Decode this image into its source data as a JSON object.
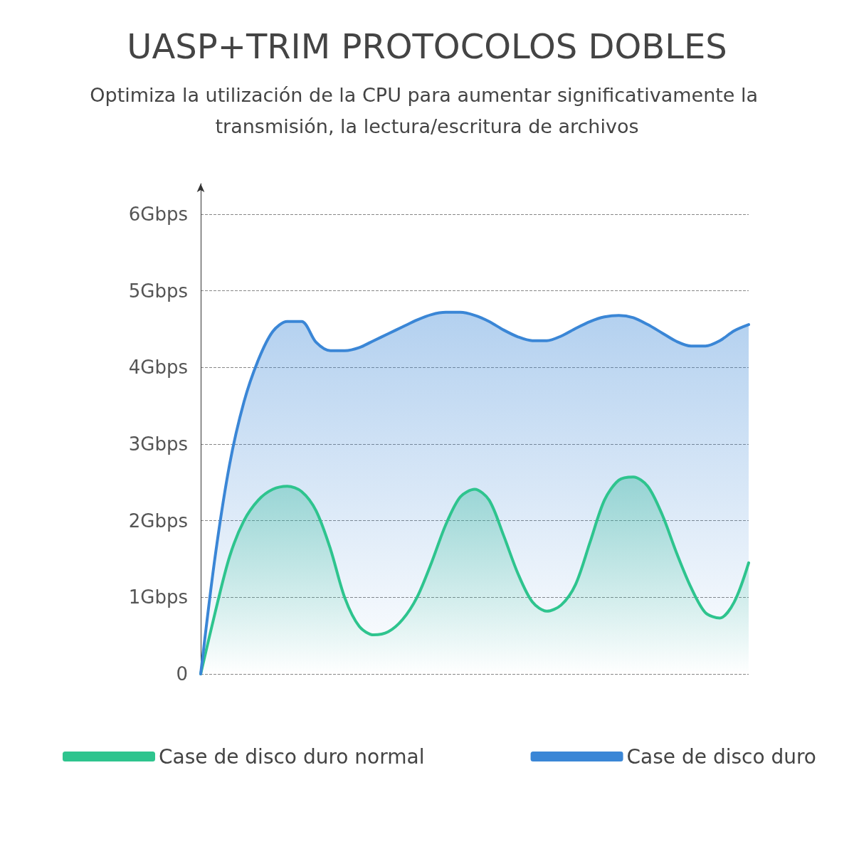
{
  "chart_data": {
    "type": "area",
    "title": "UASP+TRIM PROTOCOLOS DOBLES",
    "subtitle": "Optimiza la utilización de la CPU para aumentar significativamente la transmisión, la lectura/escritura de archivos",
    "categories": [
      null,
      null,
      null,
      null,
      null,
      null,
      null,
      null,
      null,
      null,
      null,
      null,
      null,
      null,
      null,
      null,
      null,
      null,
      null,
      null,
      null,
      null,
      null,
      null,
      null,
      null,
      null,
      null,
      null,
      null,
      null,
      null,
      null,
      null,
      null,
      null,
      null,
      null,
      null
    ],
    "series": [
      {
        "name": "Case de disco duro normal",
        "color": "#2ec48e",
        "values": [
          0,
          0.8,
          1.53,
          2.0,
          2.27,
          2.41,
          2.45,
          2.38,
          2.13,
          1.63,
          0.99,
          0.62,
          0.51,
          0.55,
          0.71,
          1.0,
          1.45,
          1.95,
          2.31,
          2.41,
          2.27,
          1.81,
          1.31,
          0.94,
          0.82,
          0.9,
          1.17,
          1.72,
          2.27,
          2.53,
          2.57,
          2.45,
          2.08,
          1.58,
          1.13,
          0.8,
          0.73,
          0.94,
          1.45
        ]
      },
      {
        "name": "Case de disco duro",
        "color": "#3a86d6",
        "values": [
          0,
          1.53,
          2.73,
          3.55,
          4.1,
          4.47,
          4.6,
          4.6,
          4.33,
          4.22,
          4.22,
          4.26,
          4.35,
          4.44,
          4.53,
          4.62,
          4.69,
          4.72,
          4.72,
          4.68,
          4.6,
          4.49,
          4.4,
          4.35,
          4.35,
          4.41,
          4.51,
          4.6,
          4.66,
          4.68,
          4.65,
          4.56,
          4.45,
          4.34,
          4.28,
          4.28,
          4.35,
          4.48,
          4.56
        ]
      }
    ],
    "ylim": [
      0,
      6.4
    ],
    "yticks": [
      0,
      {
        "value": 1,
        "label": "1Gbps"
      },
      {
        "value": 2,
        "label": "2Gbps"
      },
      {
        "value": 3,
        "label": "3Gbps"
      },
      {
        "value": 4,
        "label": "4Gbps"
      },
      {
        "value": 5,
        "label": "5Gbps"
      },
      {
        "value": 6,
        "label": "6Gbps"
      }
    ],
    "grid": "y",
    "legend": "bottom",
    "marker": "none",
    "line_style": "solid"
  }
}
